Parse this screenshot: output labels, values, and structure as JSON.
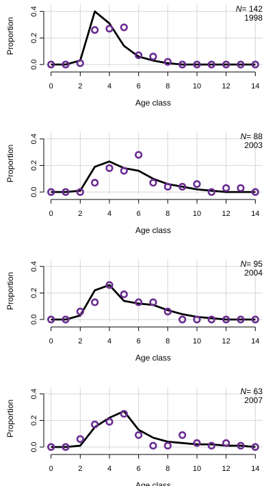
{
  "chart_data": [
    {
      "type": "line+scatter",
      "panel_label": {
        "n_prefix": "N",
        "n_eq": "= ",
        "n_value": "142",
        "year": "1998"
      },
      "xlabel": "Age class",
      "ylabel": "Proportion",
      "xlim": [
        -0.5,
        14.5
      ],
      "ylim": [
        -0.02,
        0.45
      ],
      "x_ticks": [
        0,
        2,
        4,
        6,
        8,
        10,
        12,
        14
      ],
      "y_ticks": [
        0.0,
        0.2,
        0.4
      ],
      "y_tick_labels": [
        "0.0",
        "0.2",
        "0.4"
      ],
      "grid": true,
      "series": [
        {
          "kind": "line",
          "x": [
            0,
            1,
            2,
            3,
            4,
            5,
            6,
            7,
            8,
            9,
            10,
            11,
            12,
            13,
            14
          ],
          "values": [
            0.0,
            0.0,
            0.03,
            0.4,
            0.31,
            0.14,
            0.06,
            0.03,
            0.01,
            0.0,
            0.0,
            0.0,
            0.0,
            0.0,
            0.0
          ]
        },
        {
          "kind": "points",
          "x": [
            0,
            1,
            2,
            3,
            4,
            5,
            6,
            7,
            8,
            9,
            10,
            11,
            12,
            13,
            14
          ],
          "values": [
            0.0,
            0.0,
            0.01,
            0.26,
            0.27,
            0.28,
            0.07,
            0.06,
            0.02,
            0.0,
            0.0,
            0.0,
            0.0,
            0.0,
            0.0
          ]
        }
      ]
    },
    {
      "type": "line+scatter",
      "panel_label": {
        "n_prefix": "N",
        "n_eq": "= ",
        "n_value": "88",
        "year": "2003"
      },
      "xlabel": "Age class",
      "ylabel": "Proportion",
      "xlim": [
        -0.5,
        14.5
      ],
      "ylim": [
        -0.02,
        0.45
      ],
      "x_ticks": [
        0,
        2,
        4,
        6,
        8,
        10,
        12,
        14
      ],
      "y_ticks": [
        0.0,
        0.2,
        0.4
      ],
      "y_tick_labels": [
        "0.0",
        "0.2",
        "0.4"
      ],
      "grid": true,
      "series": [
        {
          "kind": "line",
          "x": [
            0,
            1,
            2,
            3,
            4,
            5,
            6,
            7,
            8,
            9,
            10,
            11,
            12,
            13,
            14
          ],
          "values": [
            0.0,
            0.0,
            0.01,
            0.19,
            0.23,
            0.18,
            0.16,
            0.1,
            0.06,
            0.04,
            0.02,
            0.01,
            0.0,
            0.0,
            0.0
          ]
        },
        {
          "kind": "points",
          "x": [
            0,
            1,
            2,
            3,
            4,
            5,
            6,
            7,
            8,
            9,
            10,
            11,
            12,
            13,
            14
          ],
          "values": [
            0.0,
            0.0,
            0.0,
            0.07,
            0.18,
            0.16,
            0.28,
            0.07,
            0.04,
            0.04,
            0.06,
            0.0,
            0.03,
            0.03,
            0.0
          ]
        }
      ]
    },
    {
      "type": "line+scatter",
      "panel_label": {
        "n_prefix": "N",
        "n_eq": "= ",
        "n_value": "95",
        "year": "2004"
      },
      "xlabel": "Age class",
      "ylabel": "Proportion",
      "xlim": [
        -0.5,
        14.5
      ],
      "ylim": [
        -0.02,
        0.45
      ],
      "x_ticks": [
        0,
        2,
        4,
        6,
        8,
        10,
        12,
        14
      ],
      "y_ticks": [
        0.0,
        0.2,
        0.4
      ],
      "y_tick_labels": [
        "0.0",
        "0.2",
        "0.4"
      ],
      "grid": true,
      "series": [
        {
          "kind": "line",
          "x": [
            0,
            1,
            2,
            3,
            4,
            5,
            6,
            7,
            8,
            9,
            10,
            11,
            12,
            13,
            14
          ],
          "values": [
            0.0,
            0.0,
            0.03,
            0.22,
            0.26,
            0.14,
            0.12,
            0.11,
            0.07,
            0.04,
            0.02,
            0.01,
            0.0,
            0.0,
            0.0
          ]
        },
        {
          "kind": "points",
          "x": [
            0,
            1,
            2,
            3,
            4,
            5,
            6,
            7,
            8,
            9,
            10,
            11,
            12,
            13,
            14
          ],
          "values": [
            0.0,
            0.0,
            0.06,
            0.13,
            0.26,
            0.19,
            0.13,
            0.13,
            0.06,
            0.0,
            0.0,
            0.0,
            0.0,
            0.0,
            0.0
          ]
        }
      ]
    },
    {
      "type": "line+scatter",
      "panel_label": {
        "n_prefix": "N",
        "n_eq": "= ",
        "n_value": "63",
        "year": "2007"
      },
      "xlabel": "Age class",
      "ylabel": "Proportion",
      "xlim": [
        -0.5,
        14.5
      ],
      "ylim": [
        -0.02,
        0.45
      ],
      "x_ticks": [
        0,
        2,
        4,
        6,
        8,
        10,
        12,
        14
      ],
      "y_ticks": [
        0.0,
        0.2,
        0.4
      ],
      "y_tick_labels": [
        "0.0",
        "0.2",
        "0.4"
      ],
      "grid": true,
      "series": [
        {
          "kind": "line",
          "x": [
            0,
            1,
            2,
            3,
            4,
            5,
            6,
            7,
            8,
            9,
            10,
            11,
            12,
            13,
            14
          ],
          "values": [
            0.0,
            0.0,
            0.01,
            0.15,
            0.22,
            0.27,
            0.13,
            0.07,
            0.04,
            0.03,
            0.02,
            0.02,
            0.01,
            0.01,
            0.0
          ]
        },
        {
          "kind": "points",
          "x": [
            0,
            1,
            2,
            3,
            4,
            5,
            6,
            7,
            8,
            9,
            10,
            11,
            12,
            13,
            14
          ],
          "values": [
            0.0,
            0.0,
            0.06,
            0.17,
            0.19,
            0.25,
            0.09,
            0.01,
            0.01,
            0.09,
            0.03,
            0.01,
            0.03,
            0.01,
            0.0
          ]
        }
      ]
    }
  ],
  "colors": {
    "line": "#000000",
    "points": "#6a2c91",
    "grid": "#d4d4d4"
  }
}
